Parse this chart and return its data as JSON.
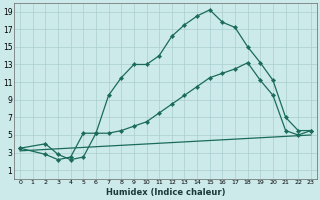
{
  "xlabel": "Humidex (Indice chaleur)",
  "bg_color": "#cceaea",
  "grid_color": "#aacece",
  "line_color": "#1a6b5a",
  "xlim": [
    -0.5,
    23.5
  ],
  "ylim": [
    0,
    20
  ],
  "xticks": [
    0,
    1,
    2,
    3,
    4,
    5,
    6,
    7,
    8,
    9,
    10,
    11,
    12,
    13,
    14,
    15,
    16,
    17,
    18,
    19,
    20,
    21,
    22,
    23
  ],
  "yticks": [
    1,
    3,
    5,
    7,
    9,
    11,
    13,
    15,
    17,
    19
  ],
  "curve1_x": [
    0,
    2,
    3,
    4,
    5,
    6,
    7,
    8,
    9,
    10,
    11,
    12,
    13,
    14,
    15,
    16,
    17,
    18,
    19,
    20,
    21,
    22,
    23
  ],
  "curve1_y": [
    3.5,
    4.0,
    2.8,
    2.2,
    2.5,
    5.2,
    9.5,
    11.5,
    13.0,
    13.0,
    14.0,
    16.2,
    17.5,
    18.5,
    19.2,
    17.8,
    17.2,
    15.0,
    13.2,
    11.2,
    7.0,
    5.5,
    5.5
  ],
  "curve2_x": [
    0,
    2,
    3,
    4,
    5,
    6,
    7,
    8,
    9,
    10,
    11,
    12,
    13,
    14,
    15,
    16,
    17,
    18,
    19,
    20,
    21,
    22,
    23
  ],
  "curve2_y": [
    3.5,
    2.8,
    2.2,
    2.5,
    5.2,
    5.2,
    5.2,
    5.5,
    6.0,
    6.5,
    7.5,
    8.5,
    9.5,
    10.5,
    11.5,
    12.0,
    12.5,
    13.2,
    11.2,
    9.5,
    5.5,
    5.0,
    5.5
  ],
  "curve3_x": [
    0,
    23
  ],
  "curve3_y": [
    3.2,
    5.0
  ]
}
